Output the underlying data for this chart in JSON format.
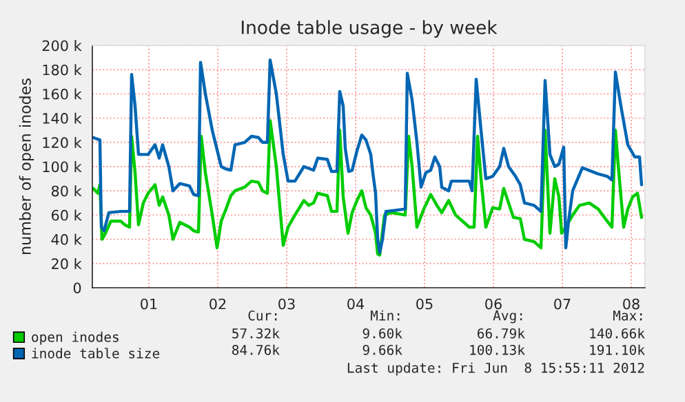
{
  "chart_data": {
    "type": "line",
    "title": "Inode table usage - by week",
    "ylabel": "number of open inodes",
    "xlim": [
      0.18,
      8.2
    ],
    "xticks": [
      {
        "value": 1,
        "label": "01"
      },
      {
        "value": 2,
        "label": "02"
      },
      {
        "value": 3,
        "label": "03"
      },
      {
        "value": 4,
        "label": "04"
      },
      {
        "value": 5,
        "label": "05"
      },
      {
        "value": 6,
        "label": "06"
      },
      {
        "value": 7,
        "label": "07"
      },
      {
        "value": 8,
        "label": "08"
      }
    ],
    "ylim": [
      0,
      200
    ],
    "yticks": [
      0,
      {
        "value": 20,
        "label": "20 k"
      },
      {
        "value": 40,
        "label": "40 k"
      },
      {
        "value": 60,
        "label": "60 k"
      },
      {
        "value": 80,
        "label": "80 k"
      },
      {
        "value": 100,
        "label": "100 k"
      },
      {
        "value": 120,
        "label": "120 k"
      },
      {
        "value": 140,
        "label": "140 k"
      },
      {
        "value": 160,
        "label": "160 k"
      },
      {
        "value": 180,
        "label": "180 k"
      },
      {
        "value": 200,
        "label": "200 k"
      }
    ],
    "grid": true,
    "legend": "bottom left",
    "line_style": "solid",
    "marker": "none",
    "series": [
      {
        "name": "open inodes",
        "color": "#00cc00",
        "x": [
          0.19,
          0.26,
          0.29,
          0.32,
          0.37,
          0.45,
          0.59,
          0.65,
          0.72,
          0.75,
          0.8,
          0.85,
          0.92,
          0.99,
          1.09,
          1.15,
          1.2,
          1.29,
          1.35,
          1.45,
          1.59,
          1.65,
          1.72,
          1.76,
          1.82,
          1.92,
          1.99,
          2.05,
          2.12,
          2.19,
          2.25,
          2.39,
          2.49,
          2.59,
          2.65,
          2.72,
          2.76,
          2.85,
          2.95,
          3.02,
          3.12,
          3.25,
          3.32,
          3.39,
          3.45,
          3.59,
          3.65,
          3.73,
          3.77,
          3.82,
          3.89,
          3.95,
          4.02,
          4.09,
          4.15,
          4.22,
          4.29,
          4.32,
          4.35,
          4.42,
          4.52,
          4.72,
          4.77,
          4.82,
          4.89,
          4.99,
          5.09,
          5.19,
          5.25,
          5.35,
          5.45,
          5.65,
          5.72,
          5.77,
          5.82,
          5.89,
          5.99,
          6.09,
          6.15,
          6.22,
          6.29,
          6.39,
          6.45,
          6.59,
          6.69,
          6.75,
          6.82,
          6.89,
          6.95,
          6.99,
          7.05,
          7.15,
          7.25,
          7.39,
          7.52,
          7.65,
          7.72,
          7.77,
          7.82,
          7.89,
          7.95,
          8.02,
          8.09,
          8.15
        ],
        "values": [
          82,
          78,
          85,
          40,
          45,
          55,
          55,
          52,
          50,
          125,
          95,
          52,
          70,
          78,
          85,
          68,
          75,
          60,
          40,
          54,
          50,
          47,
          46,
          125,
          95,
          60,
          33,
          55,
          65,
          76,
          80,
          83,
          88,
          87,
          80,
          78,
          138,
          100,
          35,
          50,
          60,
          72,
          68,
          70,
          78,
          76,
          63,
          63,
          130,
          75,
          45,
          62,
          72,
          80,
          66,
          60,
          45,
          28,
          27,
          60,
          62,
          60,
          125,
          100,
          50,
          65,
          77,
          67,
          62,
          72,
          60,
          50,
          50,
          125,
          90,
          50,
          66,
          65,
          82,
          70,
          58,
          57,
          40,
          38,
          33,
          130,
          45,
          90,
          75,
          45,
          50,
          60,
          68,
          70,
          65,
          55,
          50,
          130,
          95,
          50,
          65,
          75,
          78,
          58
        ]
      },
      {
        "name": "inode table size",
        "color": "#0066b3",
        "x": [
          0.19,
          0.29,
          0.31,
          0.35,
          0.42,
          0.59,
          0.72,
          0.75,
          0.8,
          0.85,
          0.99,
          1.09,
          1.15,
          1.2,
          1.29,
          1.35,
          1.45,
          1.59,
          1.65,
          1.72,
          1.75,
          1.82,
          1.92,
          2.05,
          2.12,
          2.19,
          2.25,
          2.39,
          2.49,
          2.59,
          2.65,
          2.72,
          2.76,
          2.85,
          2.95,
          3.02,
          3.12,
          3.25,
          3.39,
          3.45,
          3.59,
          3.65,
          3.73,
          3.77,
          3.82,
          3.85,
          3.9,
          3.95,
          4.02,
          4.09,
          4.15,
          4.22,
          4.25,
          4.29,
          4.32,
          4.35,
          4.39,
          4.44,
          4.59,
          4.72,
          4.75,
          4.82,
          4.89,
          4.95,
          5.02,
          5.09,
          5.15,
          5.22,
          5.25,
          5.35,
          5.39,
          5.65,
          5.69,
          5.75,
          5.82,
          5.89,
          5.99,
          6.09,
          6.15,
          6.22,
          6.32,
          6.39,
          6.45,
          6.59,
          6.69,
          6.75,
          6.82,
          6.89,
          6.95,
          7.02,
          7.05,
          7.09,
          7.15,
          7.29,
          7.52,
          7.65,
          7.72,
          7.77,
          7.85,
          7.95,
          8.05,
          8.12,
          8.15
        ],
        "values": [
          124,
          122,
          50,
          47,
          62,
          63,
          63,
          176,
          150,
          110,
          110,
          118,
          107,
          118,
          100,
          80,
          86,
          84,
          77,
          76,
          186,
          160,
          130,
          100,
          98,
          97,
          118,
          120,
          125,
          124,
          120,
          120,
          188,
          160,
          110,
          88,
          88,
          100,
          97,
          107,
          106,
          96,
          96,
          162,
          150,
          115,
          96,
          97,
          113,
          126,
          122,
          110,
          95,
          78,
          40,
          29,
          40,
          63,
          64,
          65,
          177,
          155,
          120,
          83,
          95,
          97,
          108,
          100,
          83,
          80,
          88,
          88,
          80,
          172,
          130,
          90,
          92,
          100,
          115,
          100,
          92,
          85,
          70,
          68,
          63,
          171,
          110,
          100,
          102,
          116,
          33,
          55,
          80,
          99,
          94,
          92,
          89,
          178,
          150,
          118,
          108,
          108,
          85
        ]
      }
    ],
    "annotations": [
      "Cur:",
      "Min:",
      "Avg:",
      "Max:",
      "57.32k",
      "9.60k",
      "66.79k",
      "140.66k",
      "84.76k",
      "9.66k",
      "100.13k",
      "191.10k",
      "Last update: Fri Jun  8 15:55:11 2012"
    ]
  }
}
